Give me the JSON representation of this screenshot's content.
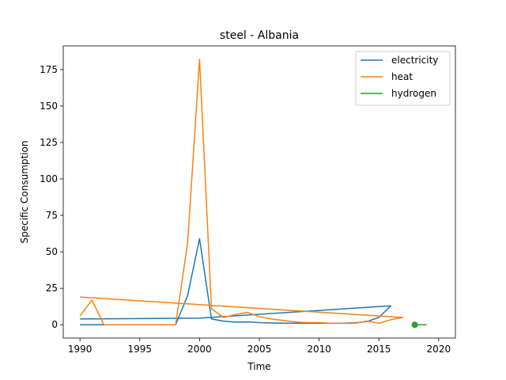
{
  "chart_data": {
    "type": "line",
    "title": "steel - Albania",
    "xlabel": "Time",
    "ylabel": "Specific Consumption",
    "xlim": [
      1988.6,
      2021.4
    ],
    "ylim": [
      -9.1,
      191.2
    ],
    "xticks": [
      1990,
      1995,
      2000,
      2005,
      2010,
      2015,
      2020
    ],
    "yticks": [
      0,
      25,
      50,
      75,
      100,
      125,
      150,
      175
    ],
    "grid": false,
    "legend_position": "top-right",
    "series": [
      {
        "name": "electricity",
        "color": "#1f77b4",
        "x": [
          1990,
          1991,
          1992,
          1993,
          1994,
          1995,
          1996,
          1997,
          1998,
          1999,
          2000,
          2001,
          2002,
          2003,
          2004,
          2005,
          2006,
          2007,
          2008,
          2009,
          2010,
          2011,
          2012,
          2013,
          2014,
          2015,
          2016,
          2000,
          1990
        ],
        "y": [
          0,
          0,
          0,
          0,
          0,
          0,
          0,
          0,
          0,
          20,
          59,
          4,
          2.5,
          1.8,
          2,
          1.5,
          1.2,
          1.1,
          1.1,
          1.0,
          1.0,
          1.0,
          1.1,
          1.3,
          2.2,
          5.0,
          13,
          4.5,
          4
        ]
      },
      {
        "name": "heat",
        "color": "#ff7f0e",
        "x": [
          1990,
          1991,
          1992,
          1993,
          1994,
          1995,
          1996,
          1997,
          1998,
          1999,
          2000,
          2001,
          2002,
          2003,
          2004,
          2005,
          2006,
          2007,
          2008,
          2009,
          2010,
          2011,
          2012,
          2013,
          2014,
          2015,
          2016,
          2017,
          1990
        ],
        "y": [
          6,
          17,
          0,
          0,
          0,
          0,
          0,
          0,
          0,
          56,
          182,
          11,
          5,
          7,
          8.5,
          5.5,
          4,
          3,
          2,
          1.5,
          1.5,
          1,
          1,
          1,
          2.5,
          1,
          3.5,
          5,
          19
        ]
      },
      {
        "name": "hydrogen",
        "color": "#2ca02c",
        "x": [
          2018,
          2019
        ],
        "y": [
          0,
          0
        ]
      }
    ]
  }
}
